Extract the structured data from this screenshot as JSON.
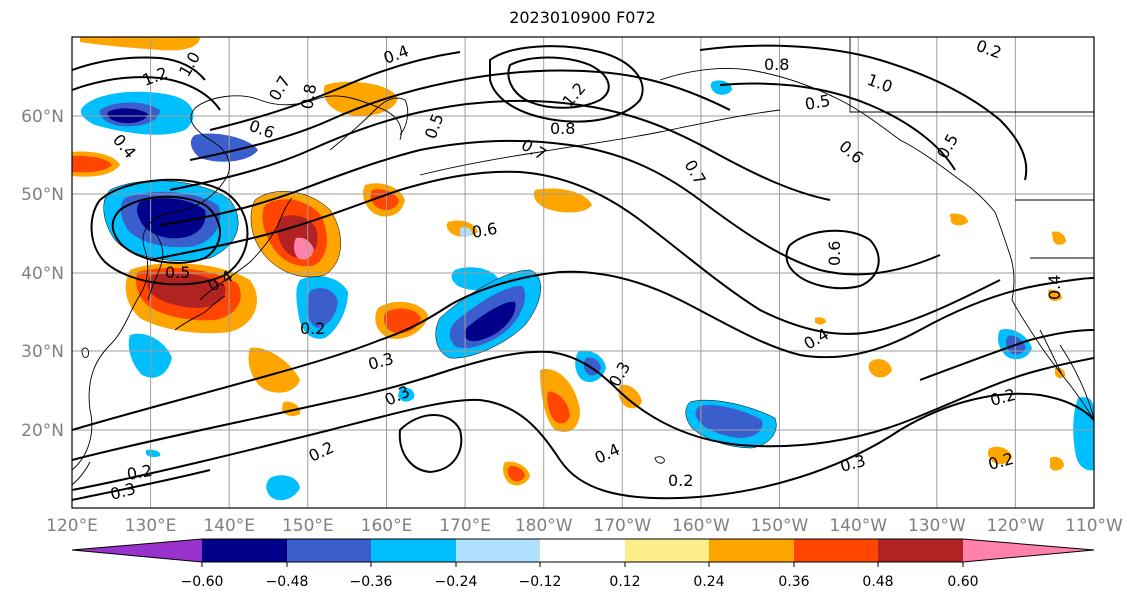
{
  "title": "2023010900 F072",
  "map": {
    "lat_ticks": [
      "20°N",
      "30°N",
      "40°N",
      "50°N",
      "60°N"
    ],
    "lon_ticks": [
      "120°E",
      "130°E",
      "140°E",
      "150°E",
      "160°E",
      "170°E",
      "180°W",
      "170°W",
      "160°W",
      "150°W",
      "140°W",
      "130°W",
      "120°W",
      "110°W"
    ],
    "contour_labels": [
      "1.2",
      "1.0",
      "0.8",
      "0.7",
      "0.6",
      "0.5",
      "0.4",
      "0.3",
      "0.2",
      "0.5",
      "0.4",
      "0.2",
      "0.3",
      "0.3",
      "0.4",
      "0.6",
      "0.8",
      "1.2",
      "0.7",
      "0.7",
      "0.8",
      "1.0",
      "0.5",
      "0.6",
      "0.5",
      "0.6",
      "0.4",
      "0.3",
      "0.2",
      "0.4",
      "0.2",
      "0.2",
      "0.3",
      "0.2",
      "0.4",
      "0.2"
    ]
  },
  "colorbar": {
    "tick_labels": [
      "−0.60",
      "−0.48",
      "−0.36",
      "−0.24",
      "−0.12",
      "0.12",
      "0.24",
      "0.36",
      "0.48",
      "0.60"
    ],
    "colors": [
      "#9932cc",
      "#00008b",
      "#3a5fcd",
      "#00bfff",
      "#b0e2ff",
      "#ffffff",
      "#ffec8b",
      "#ffa500",
      "#ff4500",
      "#b22222",
      "#ff82ab"
    ]
  }
}
